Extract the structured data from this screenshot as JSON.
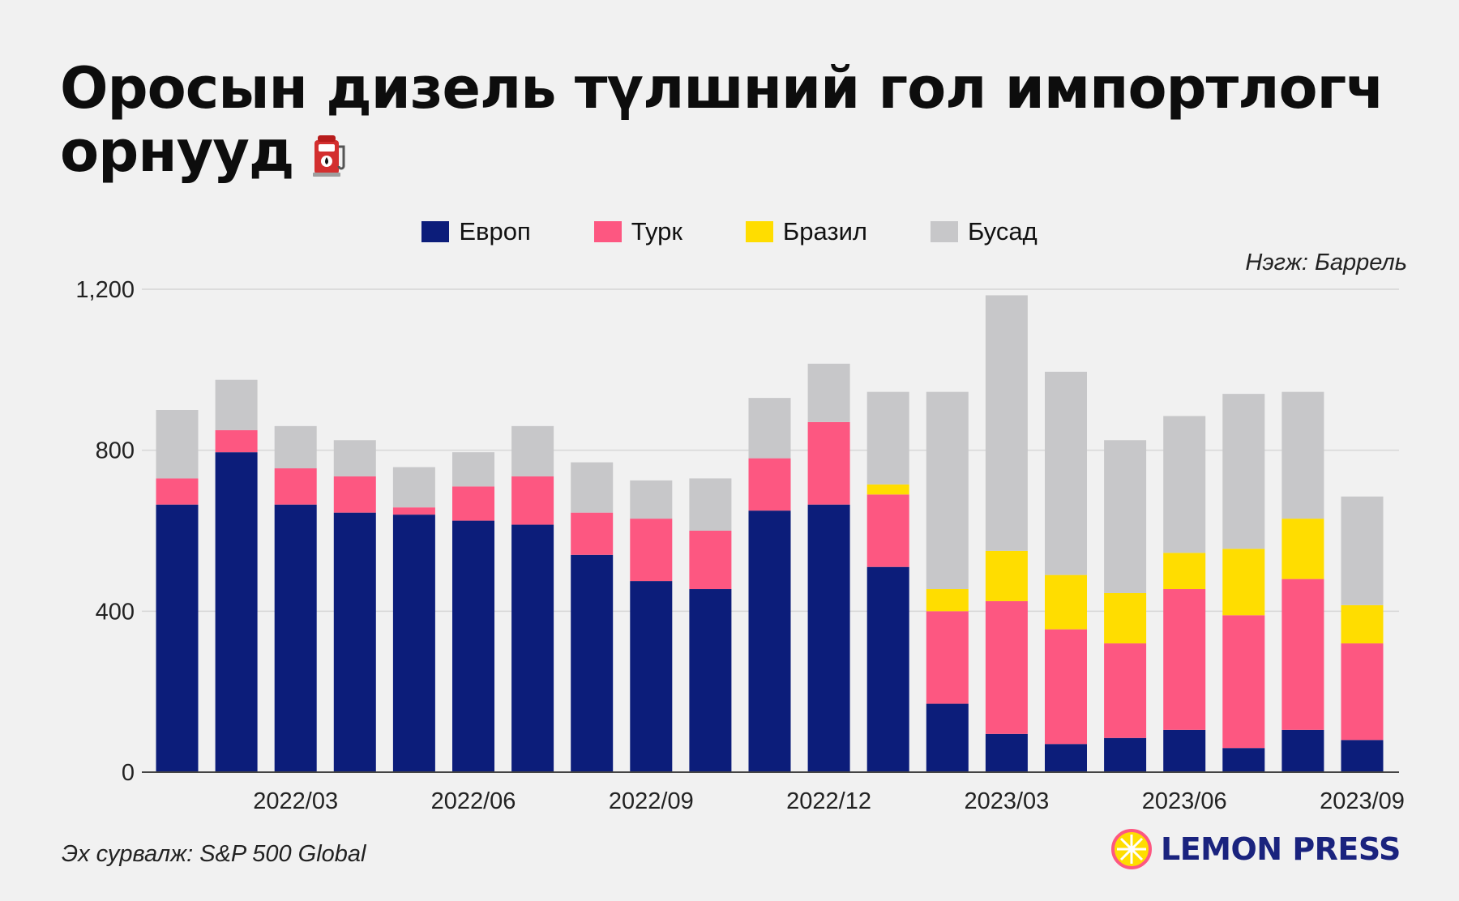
{
  "title": "Оросын дизель түлшний гол импортлогч орнууд",
  "unit_note": "Нэгж: Баррель",
  "source_note": "Эх сурвалж: S&P 500 Global",
  "brand": "LEMON PRESS",
  "icons": {
    "title_icon": "fuel-pump-icon",
    "brand_icon": "lemon-icon"
  },
  "chart_data": {
    "type": "bar",
    "stacked": true,
    "x": [
      "2022/01",
      "2022/02",
      "2022/03",
      "2022/04",
      "2022/05",
      "2022/06",
      "2022/07",
      "2022/08",
      "2022/09",
      "2022/10",
      "2022/11",
      "2022/12",
      "2023/01",
      "2023/02",
      "2023/03",
      "2023/04",
      "2023/05",
      "2023/06",
      "2023/07",
      "2023/08",
      "2023/09"
    ],
    "x_tick_labels": [
      "2022/03",
      "2022/06",
      "2022/09",
      "2022/12",
      "2023/03",
      "2023/06",
      "2023/09"
    ],
    "y_ticks": [
      0,
      400,
      800,
      1200
    ],
    "y_tick_labels": [
      "0",
      "400",
      "800",
      "1,200"
    ],
    "ylim": [
      0,
      1200
    ],
    "grid": true,
    "legend_position": "top-center",
    "series": [
      {
        "name": "Европ",
        "color": "#0c1d7a",
        "values": [
          665,
          795,
          665,
          645,
          640,
          625,
          615,
          540,
          475,
          455,
          650,
          665,
          510,
          170,
          95,
          70,
          85,
          105,
          60,
          105,
          80
        ]
      },
      {
        "name": "Турк",
        "color": "#fd5781",
        "values": [
          65,
          55,
          90,
          90,
          18,
          85,
          120,
          105,
          155,
          145,
          130,
          205,
          180,
          230,
          330,
          285,
          235,
          350,
          330,
          375,
          240
        ]
      },
      {
        "name": "Бразил",
        "color": "#ffdd00",
        "values": [
          0,
          0,
          0,
          0,
          0,
          0,
          0,
          0,
          0,
          0,
          0,
          0,
          25,
          55,
          125,
          135,
          125,
          90,
          165,
          150,
          95
        ]
      },
      {
        "name": "Бусад",
        "color": "#c7c7c9",
        "values": [
          170,
          125,
          105,
          90,
          100,
          85,
          125,
          125,
          95,
          130,
          150,
          145,
          230,
          490,
          635,
          505,
          380,
          340,
          385,
          315,
          270
        ]
      }
    ]
  }
}
